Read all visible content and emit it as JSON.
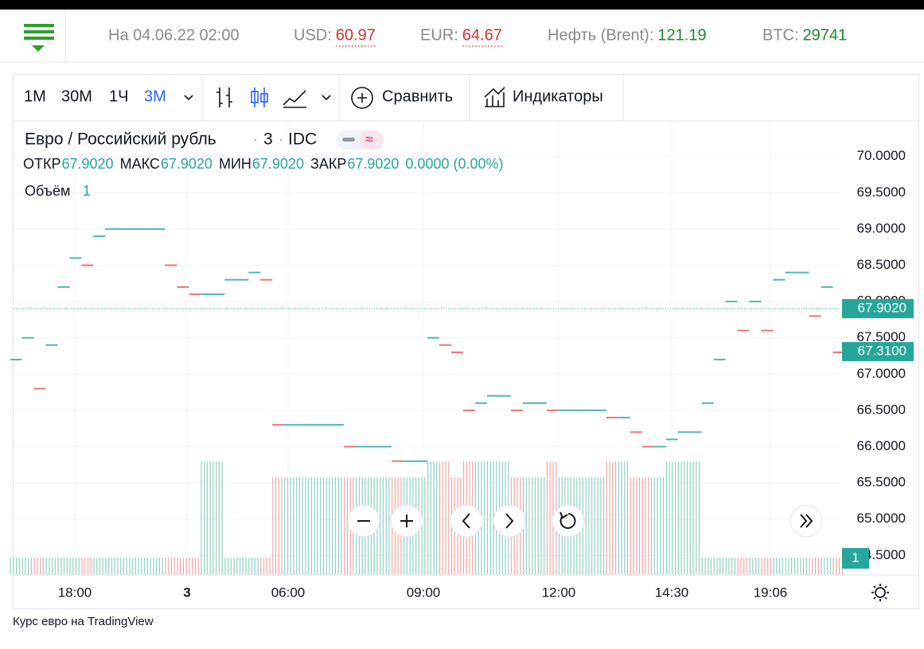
{
  "header": {
    "date": "На 04.06.22 02:00",
    "quotes": [
      {
        "label": "USD:",
        "value": "60.97",
        "trend": "down"
      },
      {
        "label": "EUR:",
        "value": "64.67",
        "trend": "down"
      },
      {
        "label": "Нефть (Brent):",
        "value": "121.19",
        "trend": "up"
      },
      {
        "label": "BTC:",
        "value": "29741",
        "trend": "up"
      }
    ]
  },
  "toolbar": {
    "intervals": [
      "1M",
      "30M",
      "1Ч",
      "3M"
    ],
    "compare": "Сравнить",
    "indicators": "Индикаторы"
  },
  "legend": {
    "symbol": "Евро / Российский рубль",
    "interval": "3",
    "source": "IDC",
    "ohlc": [
      {
        "label": "ОТКР",
        "value": "67.9020"
      },
      {
        "label": "МАКС",
        "value": "67.9020"
      },
      {
        "label": "МИН",
        "value": "67.9020"
      },
      {
        "label": "ЗАКР",
        "value": "67.9020"
      }
    ],
    "change": "0.0000 (0.00%)",
    "volume_label": "Объём",
    "volume": "1"
  },
  "chart_data": {
    "type": "line",
    "values": [
      67.2,
      67.5,
      66.8,
      67.4,
      68.2,
      68.6,
      68.5,
      68.9,
      69.0,
      69.0,
      69.0,
      69.0,
      69.0,
      68.5,
      68.2,
      68.1,
      68.1,
      68.1,
      68.3,
      68.3,
      68.4,
      68.3,
      66.3,
      66.3,
      66.3,
      66.3,
      66.3,
      66.3,
      66.0,
      66.0,
      66.0,
      66.0,
      65.8,
      65.8,
      65.8,
      67.5,
      67.4,
      67.3,
      66.5,
      66.6,
      66.7,
      66.7,
      66.5,
      66.6,
      66.6,
      66.5,
      66.5,
      66.5,
      66.5,
      66.5,
      66.4,
      66.4,
      66.2,
      66.0,
      66.0,
      66.1,
      66.2,
      66.2,
      66.6,
      67.2,
      68.0,
      67.6,
      68.0,
      67.6,
      68.3,
      68.4,
      68.4,
      67.8,
      68.2,
      67.3
    ],
    "volume": [
      1,
      1,
      1,
      1,
      1,
      1,
      1,
      1,
      1,
      1,
      1,
      1,
      1,
      1,
      1,
      1,
      6.5,
      6.5,
      1,
      1,
      1,
      1,
      5.6,
      5.6,
      5.6,
      5.6,
      5.6,
      5.6,
      5.6,
      5.6,
      5.6,
      5.6,
      5.6,
      5.6,
      5.6,
      6.5,
      6.5,
      5.6,
      6.5,
      6.5,
      6.5,
      6.5,
      5.6,
      5.6,
      5.6,
      6.5,
      5.6,
      5.6,
      5.6,
      5.6,
      6.5,
      6.5,
      5.6,
      5.6,
      5.6,
      6.5,
      6.5,
      6.5,
      1,
      1,
      1,
      1,
      1,
      1,
      1,
      1,
      1,
      1,
      1,
      1
    ],
    "vlim": [
      0,
      26
    ],
    "ylim": [
      64.23,
      70.49
    ],
    "yticks": [
      {
        "value": 70,
        "label": "70.0000"
      },
      {
        "value": 69.5,
        "label": "69.5000"
      },
      {
        "value": 69,
        "label": "69.0000"
      },
      {
        "value": 68.5,
        "label": "68.5000"
      },
      {
        "value": 68,
        "label": "68.0000"
      },
      {
        "value": 67.5,
        "label": "67.5000"
      },
      {
        "value": 67,
        "label": "67.0000"
      },
      {
        "value": 66.5,
        "label": "66.5000"
      },
      {
        "value": 66,
        "label": "66.0000"
      },
      {
        "value": 65.5,
        "label": "65.5000"
      },
      {
        "value": 65,
        "label": "65.0000"
      },
      {
        "value": 64.5,
        "label": "64.5000"
      }
    ],
    "time_labels": [
      "18:00",
      "3",
      "06:00",
      "09:00",
      "12:00",
      "14:30",
      "19:06"
    ],
    "last_price": {
      "value": 67.902,
      "label": "67.9020"
    },
    "prev_close": {
      "value": 67.31,
      "label": "67.3100"
    },
    "volume_last": "1"
  },
  "footer": "Курс евро на TradingView"
}
